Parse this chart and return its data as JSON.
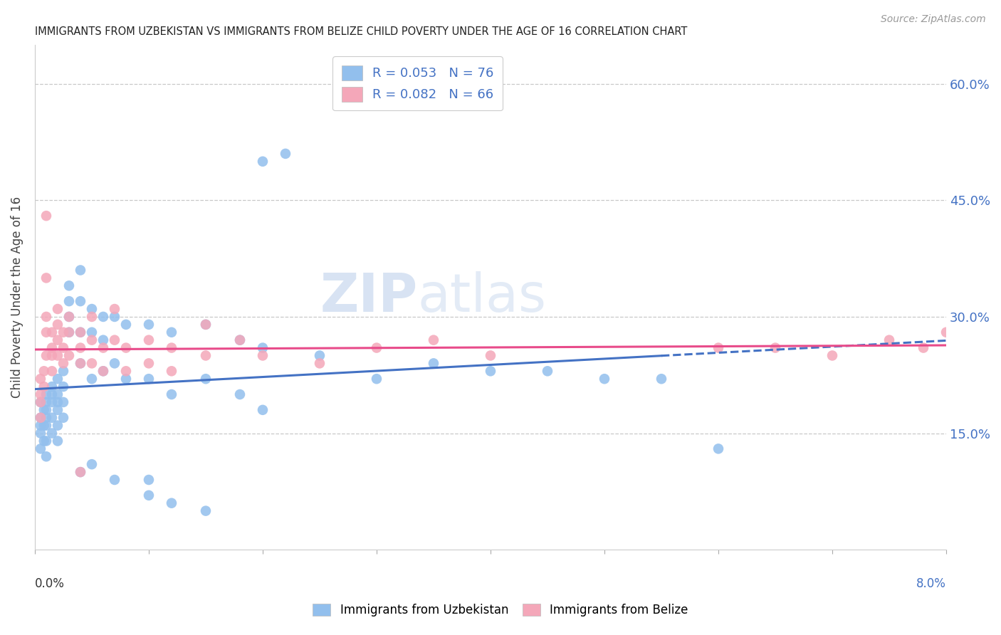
{
  "title": "IMMIGRANTS FROM UZBEKISTAN VS IMMIGRANTS FROM BELIZE CHILD POVERTY UNDER THE AGE OF 16 CORRELATION CHART",
  "source": "Source: ZipAtlas.com",
  "ylabel": "Child Poverty Under the Age of 16",
  "y_tick_labels": [
    "15.0%",
    "30.0%",
    "45.0%",
    "60.0%"
  ],
  "y_tick_values": [
    0.15,
    0.3,
    0.45,
    0.6
  ],
  "x_range": [
    0.0,
    0.08
  ],
  "y_range": [
    0.0,
    0.65
  ],
  "color_uzbekistan": "#92BFED",
  "color_belize": "#F4A7B9",
  "line_color_uzbekistan": "#4472C4",
  "line_color_belize": "#E84B8A",
  "background_color": "#FFFFFF",
  "watermark_zip": "ZIP",
  "watermark_atlas": "atlas",
  "uzbekistan_x": [
    0.0005,
    0.0005,
    0.0005,
    0.0005,
    0.0005,
    0.0008,
    0.0008,
    0.0008,
    0.001,
    0.001,
    0.001,
    0.001,
    0.001,
    0.001,
    0.001,
    0.0015,
    0.0015,
    0.0015,
    0.0015,
    0.0015,
    0.002,
    0.002,
    0.002,
    0.002,
    0.002,
    0.002,
    0.0025,
    0.0025,
    0.0025,
    0.0025,
    0.003,
    0.003,
    0.003,
    0.003,
    0.004,
    0.004,
    0.004,
    0.004,
    0.004,
    0.005,
    0.005,
    0.005,
    0.005,
    0.006,
    0.006,
    0.006,
    0.007,
    0.007,
    0.007,
    0.008,
    0.008,
    0.01,
    0.01,
    0.01,
    0.012,
    0.012,
    0.015,
    0.015,
    0.018,
    0.018,
    0.02,
    0.02,
    0.025,
    0.03,
    0.035,
    0.04,
    0.045,
    0.05,
    0.055,
    0.06,
    0.02,
    0.022,
    0.01,
    0.012,
    0.015
  ],
  "uzbekistan_y": [
    0.19,
    0.17,
    0.16,
    0.15,
    0.13,
    0.18,
    0.16,
    0.14,
    0.2,
    0.19,
    0.18,
    0.17,
    0.16,
    0.14,
    0.12,
    0.21,
    0.2,
    0.19,
    0.17,
    0.15,
    0.22,
    0.2,
    0.19,
    0.18,
    0.16,
    0.14,
    0.23,
    0.21,
    0.19,
    0.17,
    0.34,
    0.32,
    0.3,
    0.28,
    0.36,
    0.32,
    0.28,
    0.24,
    0.1,
    0.31,
    0.28,
    0.22,
    0.11,
    0.3,
    0.27,
    0.23,
    0.3,
    0.24,
    0.09,
    0.29,
    0.22,
    0.29,
    0.22,
    0.09,
    0.28,
    0.2,
    0.29,
    0.22,
    0.27,
    0.2,
    0.26,
    0.18,
    0.25,
    0.22,
    0.24,
    0.23,
    0.23,
    0.22,
    0.22,
    0.13,
    0.5,
    0.51,
    0.07,
    0.06,
    0.05
  ],
  "belize_x": [
    0.0005,
    0.0005,
    0.0005,
    0.0005,
    0.0008,
    0.0008,
    0.001,
    0.001,
    0.001,
    0.001,
    0.001,
    0.0015,
    0.0015,
    0.0015,
    0.0015,
    0.002,
    0.002,
    0.002,
    0.002,
    0.0025,
    0.0025,
    0.0025,
    0.003,
    0.003,
    0.003,
    0.004,
    0.004,
    0.004,
    0.004,
    0.005,
    0.005,
    0.005,
    0.006,
    0.006,
    0.007,
    0.007,
    0.008,
    0.008,
    0.01,
    0.01,
    0.012,
    0.012,
    0.015,
    0.015,
    0.018,
    0.02,
    0.025,
    0.03,
    0.035,
    0.04,
    0.06,
    0.065,
    0.07,
    0.075,
    0.078,
    0.08
  ],
  "belize_y": [
    0.22,
    0.2,
    0.19,
    0.17,
    0.23,
    0.21,
    0.43,
    0.35,
    0.3,
    0.28,
    0.25,
    0.28,
    0.26,
    0.25,
    0.23,
    0.31,
    0.29,
    0.27,
    0.25,
    0.28,
    0.26,
    0.24,
    0.3,
    0.28,
    0.25,
    0.28,
    0.26,
    0.24,
    0.1,
    0.3,
    0.27,
    0.24,
    0.26,
    0.23,
    0.31,
    0.27,
    0.26,
    0.23,
    0.27,
    0.24,
    0.26,
    0.23,
    0.29,
    0.25,
    0.27,
    0.25,
    0.24,
    0.26,
    0.27,
    0.25,
    0.26,
    0.26,
    0.25,
    0.27,
    0.26,
    0.28
  ]
}
